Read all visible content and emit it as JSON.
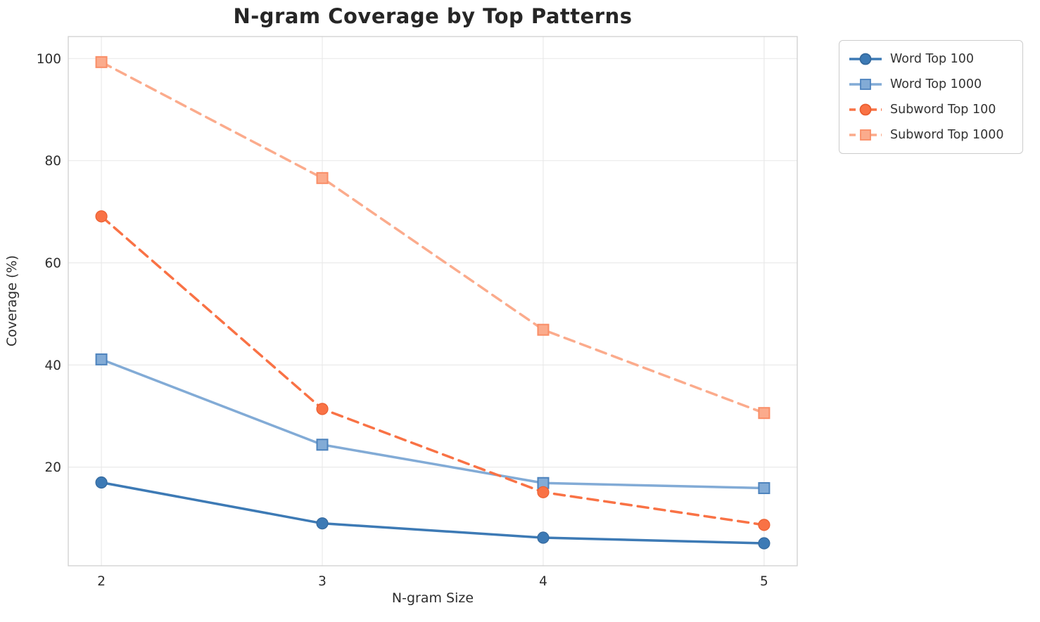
{
  "chart_data": {
    "type": "line",
    "title": "N-gram Coverage by Top Patterns",
    "xlabel": "N-gram Size",
    "ylabel": "Coverage (%)",
    "x": [
      2,
      3,
      4,
      5
    ],
    "xticks": [
      2,
      3,
      4,
      5
    ],
    "yticks": [
      20,
      40,
      60,
      80,
      100
    ],
    "xlim": [
      1.85,
      5.15
    ],
    "ylim": [
      0.7,
      104.3
    ],
    "grid": true,
    "legend_position": "outside-top-right",
    "series": [
      {
        "name": "Word Top 100",
        "values": [
          17.0,
          9.0,
          6.2,
          5.1
        ],
        "color": "#3d7ab5",
        "edge": "#35699d",
        "marker": "circle",
        "dash": false
      },
      {
        "name": "Word Top 1000",
        "values": [
          41.1,
          24.4,
          16.9,
          15.9
        ],
        "color": "#82abd6",
        "edge": "#4d83bd",
        "marker": "square",
        "dash": false
      },
      {
        "name": "Subword Top 100",
        "values": [
          69.1,
          31.4,
          15.1,
          8.7
        ],
        "color": "#f97245",
        "edge": "#ea5f31",
        "marker": "circle",
        "dash": true
      },
      {
        "name": "Subword Top 1000",
        "values": [
          99.3,
          76.6,
          46.9,
          30.6
        ],
        "color": "#fbab8c",
        "edge": "#f98e67",
        "marker": "square",
        "dash": true
      }
    ],
    "style": {
      "grid_color": "#e8e8e8",
      "spine_color": "#cfcfcf",
      "tick_color": "#2e2e2e",
      "background": "#ffffff"
    }
  }
}
